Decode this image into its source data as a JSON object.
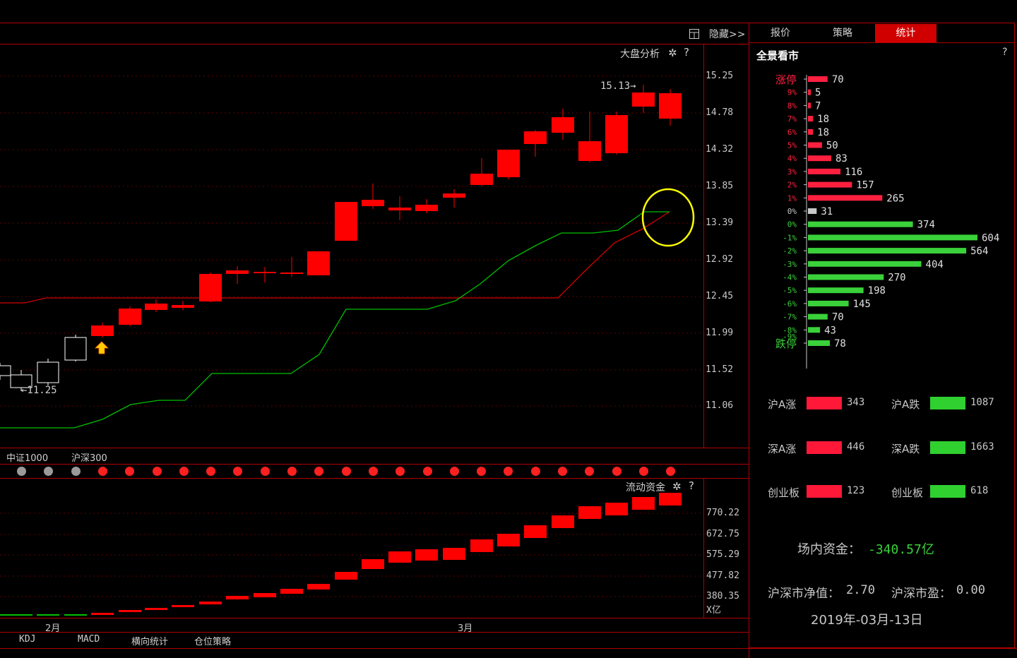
{
  "toolbar": {
    "hide_label": "隐藏>>",
    "grid_icon": "grid-icon"
  },
  "tabs": [
    {
      "label": "报价",
      "active": false
    },
    {
      "label": "策略",
      "active": false
    },
    {
      "label": "统计",
      "active": true
    }
  ],
  "main_chart": {
    "indicator_label": "大盘分析",
    "help": "?",
    "price_labels": [
      "15.25",
      "14.78",
      "14.32",
      "13.85",
      "13.39",
      "12.92",
      "12.45",
      "11.99",
      "11.52",
      "11.06"
    ],
    "high_marker": "15.13→",
    "low_marker": "←11.25",
    "buy_signal_icon": "buy-arrow-icon",
    "colors": {
      "up": "#ff0000",
      "down": "#ffffff",
      "ma_green": "#00c000",
      "ma_red": "#d00000",
      "highlight": "#ffff00"
    }
  },
  "index_tabs": [
    "中证1000",
    "沪深300"
  ],
  "dots": [
    "gray",
    "gray",
    "gray",
    "red",
    "red",
    "red",
    "red",
    "red",
    "red",
    "red",
    "red",
    "red",
    "red",
    "red",
    "red",
    "red",
    "red",
    "red",
    "red",
    "red",
    "red",
    "red",
    "red",
    "red",
    "red"
  ],
  "flow_chart": {
    "title": "流动资金",
    "help": "?",
    "labels": [
      "770.22",
      "672.75",
      "575.29",
      "477.82",
      "380.35"
    ],
    "unit": "X亿",
    "months": [
      "2月",
      "3月"
    ]
  },
  "bottom_tabs": [
    "KDJ",
    "MACD",
    "横向统计",
    "仓位策略"
  ],
  "panel": {
    "title": "全景看市",
    "help": "?",
    "histogram": [
      {
        "label": "涨停",
        "value": 70,
        "color": "#ff2040"
      },
      {
        "label": "9%",
        "value": 5,
        "color": "#ff2040"
      },
      {
        "label": "8%",
        "value": 7,
        "color": "#ff2040"
      },
      {
        "label": "7%",
        "value": 18,
        "color": "#ff2040"
      },
      {
        "label": "6%",
        "value": 18,
        "color": "#ff2040"
      },
      {
        "label": "5%",
        "value": 50,
        "color": "#ff2040"
      },
      {
        "label": "4%",
        "value": 83,
        "color": "#ff2040"
      },
      {
        "label": "3%",
        "value": 116,
        "color": "#ff2040"
      },
      {
        "label": "2%",
        "value": 157,
        "color": "#ff2040"
      },
      {
        "label": "1%",
        "value": 265,
        "color": "#ff2040"
      },
      {
        "label": "0%",
        "value": 31,
        "color": "#c8c8c8"
      },
      {
        "label": "0%",
        "value": 374,
        "color": "#3ad13a"
      },
      {
        "label": "-1%",
        "value": 604,
        "color": "#3ad13a"
      },
      {
        "label": "-2%",
        "value": 564,
        "color": "#3ad13a"
      },
      {
        "label": "-3%",
        "value": 404,
        "color": "#3ad13a"
      },
      {
        "label": "-4%",
        "value": 270,
        "color": "#3ad13a"
      },
      {
        "label": "-5%",
        "value": 198,
        "color": "#3ad13a"
      },
      {
        "label": "-6%",
        "value": 145,
        "color": "#3ad13a"
      },
      {
        "label": "-7%",
        "value": 70,
        "color": "#3ad13a"
      },
      {
        "label": "-8%",
        "value": 43,
        "color": "#3ad13a"
      },
      {
        "label": "跌停",
        "value": 78,
        "color": "#3ad13a"
      }
    ],
    "hist_extra_label": "-9%",
    "stats": [
      {
        "up_label": "沪A涨",
        "up_value": "343",
        "down_label": "沪A跌",
        "down_value": "1087"
      },
      {
        "up_label": "深A涨",
        "up_value": "446",
        "down_label": "深A跌",
        "down_value": "1663"
      },
      {
        "up_label": "创业板",
        "up_value": "123",
        "down_label": "创业板",
        "down_value": "618"
      }
    ],
    "capital_label": "场内资金：",
    "capital_value": "-340.57亿",
    "pb_label": "沪深市净值：",
    "pb_value": "2.70",
    "pe_label": "沪深市盈：",
    "pe_value": "0.00",
    "date": "2019年-03月-13日"
  }
}
